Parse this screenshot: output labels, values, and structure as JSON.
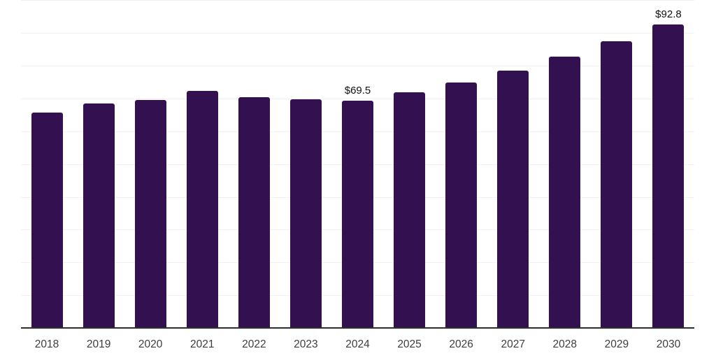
{
  "chart_data": {
    "type": "bar",
    "title": "",
    "xlabel": "",
    "ylabel": "",
    "categories": [
      "2018",
      "2019",
      "2020",
      "2021",
      "2022",
      "2023",
      "2024",
      "2025",
      "2026",
      "2027",
      "2028",
      "2029",
      "2030"
    ],
    "values": [
      65.9,
      68.7,
      69.8,
      72.6,
      70.7,
      70.0,
      69.5,
      72.2,
      75.0,
      78.7,
      83.0,
      87.6,
      92.8
    ],
    "data_labels": [
      null,
      null,
      null,
      null,
      null,
      null,
      "$69.5",
      null,
      null,
      null,
      null,
      null,
      "$92.8"
    ],
    "ylim": [
      0,
      100
    ],
    "grid_step": 10,
    "grid": true,
    "legend": false,
    "colors": {
      "bar": "#331150",
      "gridline": "#f2f2f2",
      "axis_line": "#2e2e2e",
      "tick_label": "#3d3d3d",
      "data_label": "#111111",
      "background": "#ffffff"
    }
  }
}
